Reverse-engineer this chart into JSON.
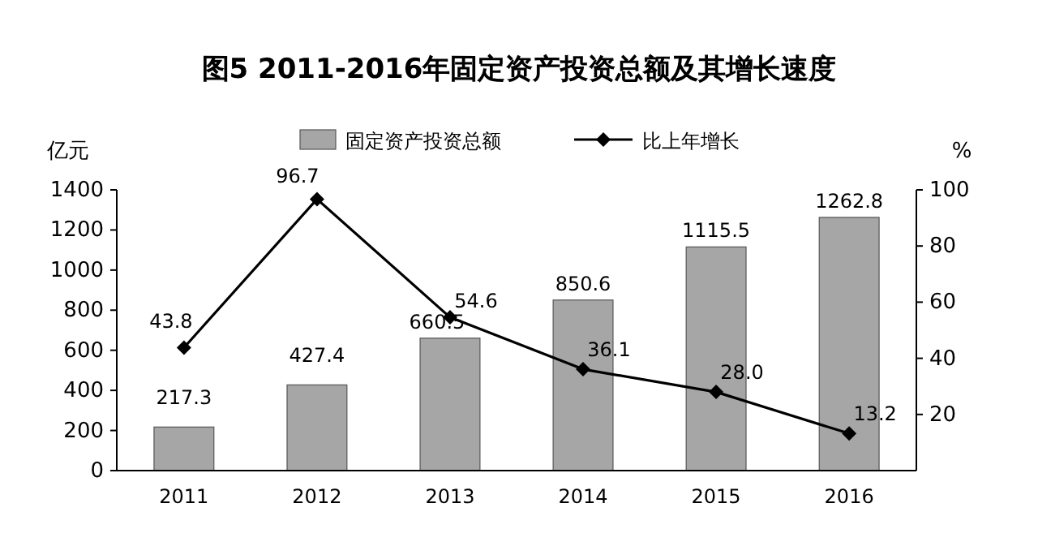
{
  "chart_data": {
    "type": "bar",
    "title": "图5 2011-2016年固定资产投资总额及其增长速度",
    "ylabel": "亿元",
    "y2label": "%",
    "categories": [
      "2011",
      "2012",
      "2013",
      "2014",
      "2015",
      "2016"
    ],
    "series": [
      {
        "name": "固定资产投资总额",
        "color": "#a6a6a6",
        "values": [
          217.3,
          427.4,
          660.5,
          850.6,
          1115.5,
          1262.8
        ],
        "value_labels": [
          "217.3",
          "427.4",
          "660.5",
          "850.6",
          "1115.5",
          "1262.8"
        ]
      },
      {
        "name": "比上年增长",
        "type": "line",
        "axis": "y2",
        "color": "#000000",
        "values": [
          43.8,
          96.7,
          54.6,
          36.1,
          28.0,
          13.2
        ],
        "value_labels": [
          "43.8",
          "96.7",
          "54.6",
          "36.1",
          "28.0",
          "13.2"
        ]
      }
    ],
    "ylim": [
      0,
      1400
    ],
    "yticks": [
      0,
      200,
      400,
      600,
      800,
      1000,
      1200,
      1400
    ],
    "y2lim": [
      0,
      100
    ],
    "y2ticks": [
      20,
      40,
      60,
      80,
      100
    ],
    "legend": "top",
    "marker": "diamond",
    "grid": false
  }
}
